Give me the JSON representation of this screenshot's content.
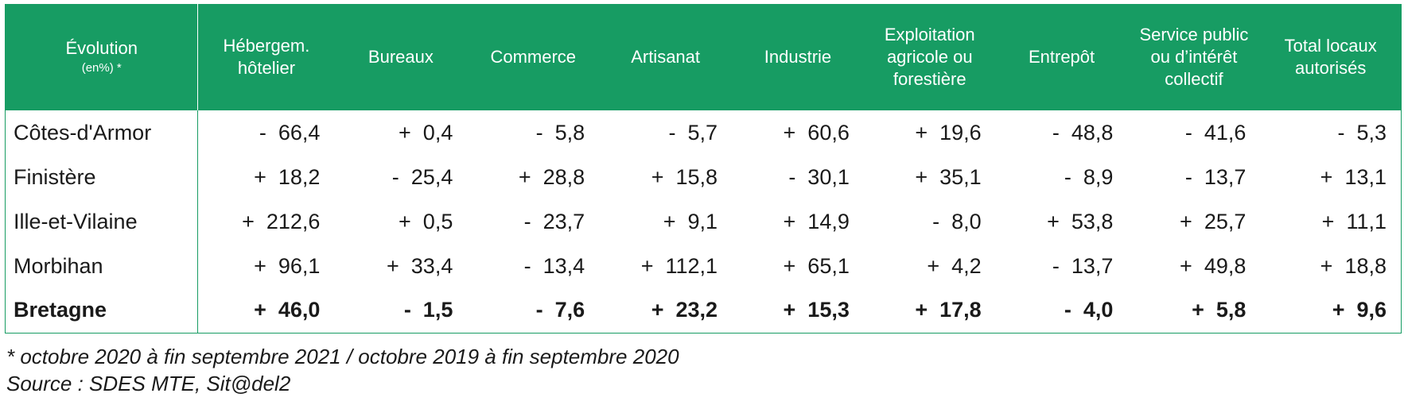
{
  "table": {
    "header": {
      "first": {
        "title": "Évolution",
        "sub": "(en%) *"
      },
      "columns": [
        "Hébergem. hôtelier",
        "Bureaux",
        "Commerce",
        "Artisanat",
        "Industrie",
        "Exploitation agricole ou forestière",
        "Entrepôt",
        "Service public ou d’intérêt collectif",
        "Total locaux autorisés"
      ]
    },
    "rows": [
      {
        "label": "Côtes-d'Armor",
        "values": [
          "-  66,4",
          "+  0,4",
          "-  5,8",
          "-  5,7",
          "+  60,6",
          "+  19,6",
          "-  48,8",
          "-  41,6",
          "-  5,3"
        ]
      },
      {
        "label": "Finistère",
        "values": [
          "+  18,2",
          "-  25,4",
          "+  28,8",
          "+  15,8",
          "-  30,1",
          "+  35,1",
          "-  8,9",
          "-  13,7",
          "+  13,1"
        ]
      },
      {
        "label": "Ille-et-Vilaine",
        "values": [
          "+  212,6",
          "+  0,5",
          "-  23,7",
          "+  9,1",
          "+  14,9",
          "-  8,0",
          "+  53,8",
          "+  25,7",
          "+  11,1"
        ]
      },
      {
        "label": "Morbihan",
        "values": [
          "+  96,1",
          "+  33,4",
          "-  13,4",
          "+  112,1",
          "+  65,1",
          "+  4,2",
          "-  13,7",
          "+  49,8",
          "+  18,8"
        ]
      },
      {
        "label": "Bretagne",
        "values": [
          "+  46,0",
          "-  1,5",
          "-  7,6",
          "+  23,2",
          "+  15,3",
          "+  17,8",
          "-  4,0",
          "+  5,8",
          "+  9,6"
        ]
      }
    ]
  },
  "notes": {
    "period": "* octobre 2020 à fin septembre 2021 / octobre 2019 à fin septembre 2020",
    "source": "Source : SDES MTE, Sit@del2"
  },
  "colors": {
    "header_bg": "#179c63",
    "header_text": "#ffffff",
    "border": "#179c63"
  }
}
